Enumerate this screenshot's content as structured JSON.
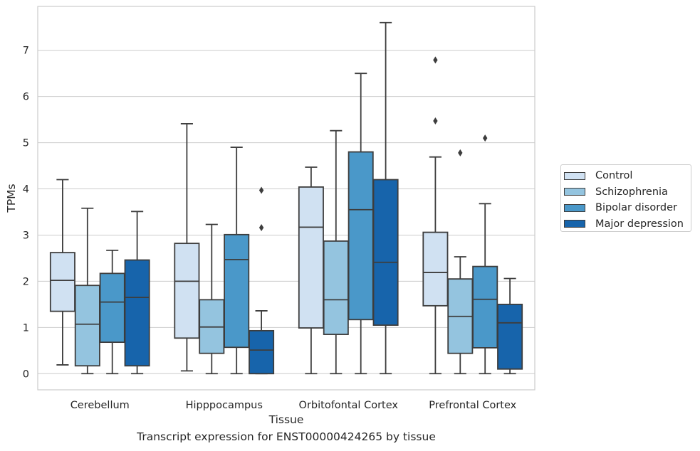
{
  "caption": "Transcript expression for ENST00000424265 by tissue",
  "chart_data": {
    "type": "box",
    "xlabel": "Tissue",
    "ylabel": "TPMs",
    "ylim": [
      -0.35,
      7.95
    ],
    "yticks": [
      0,
      1,
      2,
      3,
      4,
      5,
      6,
      7
    ],
    "grid": "horizontal",
    "legend_position": "right",
    "categories": [
      "Cerebellum",
      "Hipppocampus",
      "Orbitofontal Cortex",
      "Prefrontal Cortex"
    ],
    "series": [
      {
        "name": "Control",
        "color": "#d0e1f2",
        "boxes": [
          {
            "whislo": 0.19,
            "q1": 1.35,
            "med": 2.02,
            "q3": 2.62,
            "whishi": 4.2,
            "fliers": []
          },
          {
            "whislo": 0.06,
            "q1": 0.77,
            "med": 2.0,
            "q3": 2.82,
            "whishi": 5.41,
            "fliers": []
          },
          {
            "whislo": 0.0,
            "q1": 0.99,
            "med": 3.17,
            "q3": 4.04,
            "whishi": 4.47,
            "fliers": []
          },
          {
            "whislo": 0.0,
            "q1": 1.47,
            "med": 2.19,
            "q3": 3.06,
            "whishi": 4.69,
            "fliers": [
              5.47,
              6.79
            ]
          }
        ]
      },
      {
        "name": "Schizophrenia",
        "color": "#94c4df",
        "boxes": [
          {
            "whislo": 0.0,
            "q1": 0.17,
            "med": 1.07,
            "q3": 1.91,
            "whishi": 3.58,
            "fliers": []
          },
          {
            "whislo": 0.0,
            "q1": 0.44,
            "med": 1.01,
            "q3": 1.6,
            "whishi": 3.23,
            "fliers": []
          },
          {
            "whislo": 0.0,
            "q1": 0.85,
            "med": 1.6,
            "q3": 2.87,
            "whishi": 5.26,
            "fliers": []
          },
          {
            "whislo": 0.0,
            "q1": 0.44,
            "med": 1.24,
            "q3": 2.05,
            "whishi": 2.53,
            "fliers": [
              4.78
            ]
          }
        ]
      },
      {
        "name": "Bipolar disorder",
        "color": "#4a98c9",
        "boxes": [
          {
            "whislo": 0.0,
            "q1": 0.68,
            "med": 1.55,
            "q3": 2.17,
            "whishi": 2.67,
            "fliers": []
          },
          {
            "whislo": 0.0,
            "q1": 0.57,
            "med": 2.47,
            "q3": 3.01,
            "whishi": 4.9,
            "fliers": []
          },
          {
            "whislo": 0.0,
            "q1": 1.17,
            "med": 3.55,
            "q3": 4.8,
            "whishi": 6.5,
            "fliers": []
          },
          {
            "whislo": 0.0,
            "q1": 0.56,
            "med": 1.61,
            "q3": 2.32,
            "whishi": 3.68,
            "fliers": [
              5.1
            ]
          }
        ]
      },
      {
        "name": "Major depression",
        "color": "#1764ab",
        "boxes": [
          {
            "whislo": 0.0,
            "q1": 0.17,
            "med": 1.65,
            "q3": 2.46,
            "whishi": 3.51,
            "fliers": []
          },
          {
            "whislo": 0.0,
            "q1": 0.0,
            "med": 0.51,
            "q3": 0.93,
            "whishi": 1.36,
            "fliers": [
              3.16,
              3.97
            ]
          },
          {
            "whislo": 0.0,
            "q1": 1.05,
            "med": 2.41,
            "q3": 4.2,
            "whishi": 7.6,
            "fliers": []
          },
          {
            "whislo": 0.0,
            "q1": 0.1,
            "med": 1.1,
            "q3": 1.5,
            "whishi": 2.06,
            "fliers": []
          }
        ]
      }
    ]
  }
}
